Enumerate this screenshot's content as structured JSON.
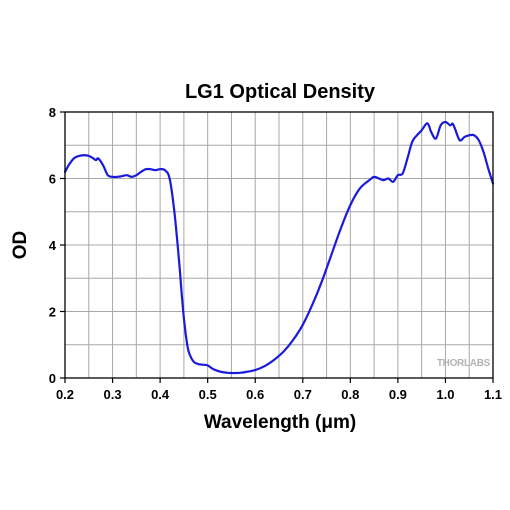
{
  "chart_data": {
    "type": "line",
    "title": "LG1 Optical Density",
    "xlabel": "Wavelength (μm)",
    "ylabel": "OD",
    "xlim": [
      0.2,
      1.1
    ],
    "ylim": [
      0,
      8
    ],
    "x_ticks": [
      "0.2",
      "0.3",
      "0.4",
      "0.5",
      "0.6",
      "0.7",
      "0.8",
      "0.9",
      "1.0",
      "1.1"
    ],
    "y_ticks": [
      "0",
      "2",
      "4",
      "6",
      "8"
    ],
    "x_tick_values": [
      0.2,
      0.3,
      0.4,
      0.5,
      0.6,
      0.7,
      0.8,
      0.9,
      1.0,
      1.1
    ],
    "y_tick_values": [
      0,
      2,
      4,
      6,
      8
    ],
    "grid": true,
    "series": [
      {
        "color": "#1a1adc",
        "x": [
          0.2,
          0.21,
          0.22,
          0.23,
          0.24,
          0.25,
          0.26,
          0.265,
          0.27,
          0.28,
          0.29,
          0.3,
          0.31,
          0.32,
          0.33,
          0.34,
          0.35,
          0.36,
          0.37,
          0.38,
          0.39,
          0.4,
          0.41,
          0.42,
          0.43,
          0.44,
          0.445,
          0.45,
          0.455,
          0.46,
          0.47,
          0.48,
          0.49,
          0.5,
          0.51,
          0.52,
          0.53,
          0.54,
          0.55,
          0.56,
          0.57,
          0.58,
          0.6,
          0.62,
          0.64,
          0.66,
          0.68,
          0.7,
          0.72,
          0.74,
          0.76,
          0.78,
          0.8,
          0.82,
          0.84,
          0.85,
          0.86,
          0.87,
          0.88,
          0.89,
          0.9,
          0.91,
          0.92,
          0.93,
          0.94,
          0.95,
          0.96,
          0.965,
          0.97,
          0.98,
          0.99,
          1.0,
          1.01,
          1.015,
          1.02,
          1.03,
          1.04,
          1.05,
          1.06,
          1.07,
          1.08,
          1.09,
          1.1
        ],
        "y": [
          6.2,
          6.45,
          6.62,
          6.68,
          6.7,
          6.68,
          6.6,
          6.55,
          6.6,
          6.4,
          6.1,
          6.05,
          6.05,
          6.07,
          6.1,
          6.05,
          6.1,
          6.2,
          6.28,
          6.28,
          6.25,
          6.28,
          6.25,
          6.0,
          5.0,
          3.5,
          2.6,
          1.8,
          1.2,
          0.8,
          0.5,
          0.42,
          0.4,
          0.38,
          0.28,
          0.22,
          0.18,
          0.16,
          0.15,
          0.15,
          0.16,
          0.18,
          0.24,
          0.36,
          0.55,
          0.8,
          1.15,
          1.6,
          2.2,
          2.9,
          3.7,
          4.5,
          5.2,
          5.7,
          5.95,
          6.05,
          6.0,
          5.95,
          6.0,
          5.9,
          6.1,
          6.15,
          6.6,
          7.1,
          7.3,
          7.45,
          7.65,
          7.6,
          7.4,
          7.2,
          7.6,
          7.7,
          7.6,
          7.65,
          7.5,
          7.15,
          7.25,
          7.3,
          7.3,
          7.15,
          6.8,
          6.3,
          5.85
        ]
      }
    ]
  },
  "watermark": "THORLABS"
}
